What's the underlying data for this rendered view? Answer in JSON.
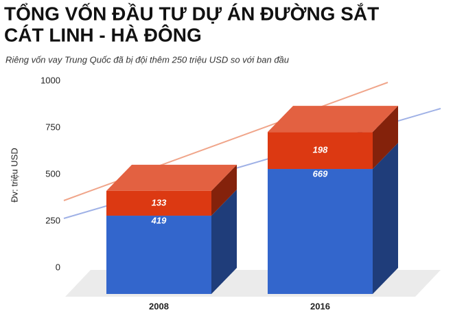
{
  "chart_data": {
    "type": "stacked_bar_3d",
    "title": [
      "TỔNG VỐN ĐẦU TƯ DỰ ÁN ĐƯỜNG SẮT",
      "CÁT LINH - HÀ ĐÔNG"
    ],
    "subtitle": "Riêng vốn vay Trung Quốc đã bị đội thêm 250 triệu USD so với ban đầu",
    "y_label": "Đv: triệu USD",
    "categories": [
      "2008",
      "2016"
    ],
    "series": [
      {
        "color": "#3366cc",
        "values": [
          419,
          669
        ]
      },
      {
        "color": "#dc3912",
        "values": [
          133,
          198
        ]
      }
    ],
    "ylim": [
      0,
      1000
    ],
    "yticks": [
      0,
      250,
      500,
      750,
      1000
    ]
  }
}
